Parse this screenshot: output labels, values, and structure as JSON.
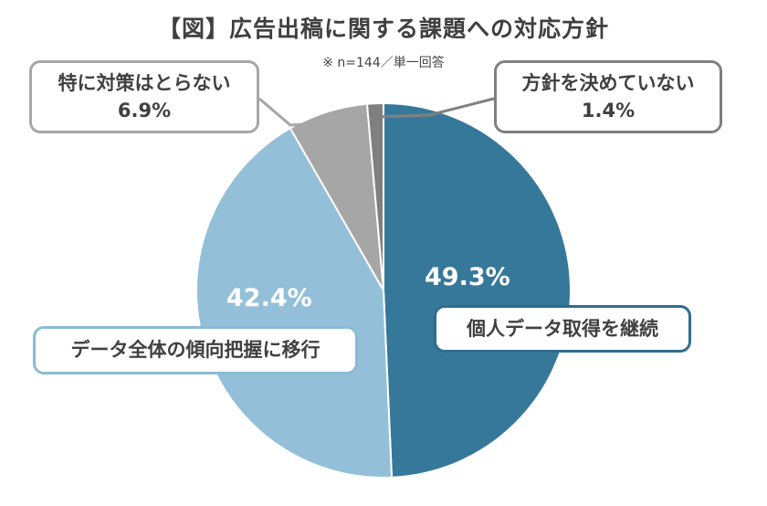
{
  "title": "【図】広告出稿に関する課題への対応方針",
  "note": "※ n=144／単一回答",
  "chart_data": {
    "type": "pie",
    "slices": [
      {
        "label": "個人データ取得を継続",
        "value": 49.3,
        "display": "49.3%",
        "color": "#36789a"
      },
      {
        "label": "データ全体の傾向把握に移行",
        "value": 42.4,
        "display": "42.4%",
        "color": "#93c0d8"
      },
      {
        "label": "特に対策はとらない",
        "value": 6.9,
        "display": "6.9%",
        "color": "#a6a6a6"
      },
      {
        "label": "方針を決めていない",
        "value": 1.4,
        "display": "1.4%",
        "color": "#7f7f7f"
      }
    ]
  }
}
